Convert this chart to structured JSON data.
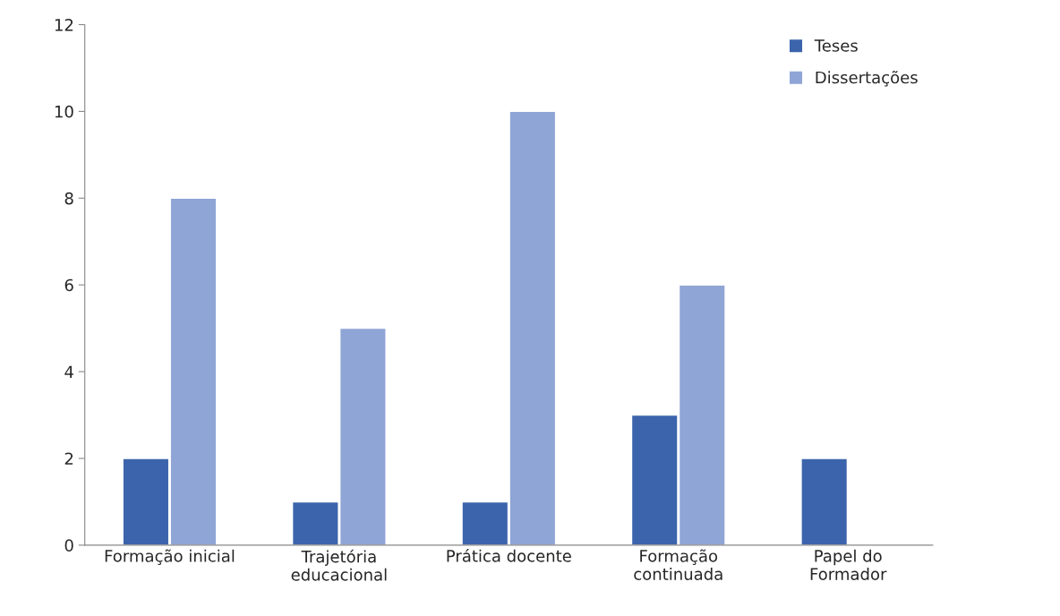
{
  "chart_data": {
    "type": "bar",
    "categories": [
      "Formação inicial",
      "Trajetória\neducacional",
      "Prática docente",
      "Formação\ncontinuada",
      "Papel do\nFormador"
    ],
    "series": [
      {
        "name": "Teses",
        "color": "#3c64ac",
        "values": [
          2,
          1,
          1,
          3,
          2
        ]
      },
      {
        "name": "Dissertações",
        "color": "#8fa5d5",
        "values": [
          8,
          5,
          10,
          6,
          null
        ]
      }
    ],
    "ylim": [
      0,
      12
    ],
    "yticks": [
      0,
      2,
      4,
      6,
      8,
      10,
      12
    ],
    "grid": false,
    "legend": "top right"
  }
}
